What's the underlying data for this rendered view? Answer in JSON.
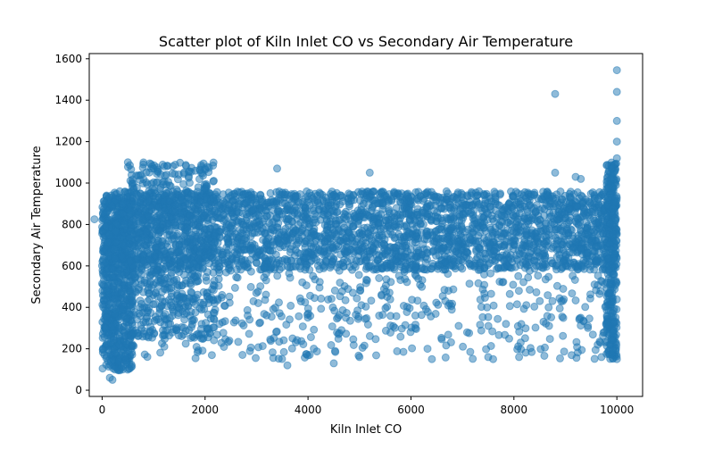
{
  "chart_data": {
    "type": "scatter",
    "title": "Scatter plot of Kiln Inlet CO vs Secondary Air Temperature",
    "xlabel": "Kiln Inlet CO",
    "ylabel": "Secondary Air Temperature",
    "xlim": [
      -250,
      10500
    ],
    "ylim": [
      -30,
      1625
    ],
    "xticks": [
      0,
      2000,
      4000,
      6000,
      8000,
      10000
    ],
    "yticks": [
      0,
      200,
      400,
      600,
      800,
      1000,
      1200,
      1400,
      1600
    ],
    "grid": false,
    "legend": "none",
    "marker_color": "#1f77b4",
    "marker_alpha": 0.5,
    "dense_regions": [
      {
        "x_range": [
          0,
          10000
        ],
        "y_range": [
          580,
          960
        ],
        "weight": 0.6
      },
      {
        "x_range": [
          0,
          600
        ],
        "y_range": [
          90,
          940
        ],
        "weight": 0.12
      },
      {
        "x_range": [
          500,
          2200
        ],
        "y_range": [
          250,
          1100
        ],
        "weight": 0.12
      },
      {
        "x_range": [
          9800,
          10000
        ],
        "y_range": [
          150,
          1100
        ],
        "weight": 0.06
      },
      {
        "x_range": [
          0,
          10000
        ],
        "y_range": [
          150,
          580
        ],
        "weight": 0.1
      }
    ],
    "points": [
      {
        "x": -150,
        "y": 825
      },
      {
        "x": 200,
        "y": 50
      },
      {
        "x": 150,
        "y": 60
      },
      {
        "x": 250,
        "y": 100
      },
      {
        "x": 400,
        "y": 100
      },
      {
        "x": 500,
        "y": 1100
      },
      {
        "x": 800,
        "y": 1090
      },
      {
        "x": 1000,
        "y": 1070
      },
      {
        "x": 2000,
        "y": 1070
      },
      {
        "x": 3400,
        "y": 1070
      },
      {
        "x": 5200,
        "y": 1050
      },
      {
        "x": 8800,
        "y": 1050
      },
      {
        "x": 9200,
        "y": 1030
      },
      {
        "x": 9300,
        "y": 1020
      },
      {
        "x": 3600,
        "y": 120
      },
      {
        "x": 4500,
        "y": 130
      },
      {
        "x": 5000,
        "y": 160
      },
      {
        "x": 7500,
        "y": 160
      },
      {
        "x": 8100,
        "y": 160
      },
      {
        "x": 8800,
        "y": 1430
      },
      {
        "x": 9900,
        "y": 1070
      },
      {
        "x": 10000,
        "y": 1120
      },
      {
        "x": 10000,
        "y": 1200
      },
      {
        "x": 10000,
        "y": 1300
      },
      {
        "x": 10000,
        "y": 1440
      },
      {
        "x": 10000,
        "y": 1545
      },
      {
        "x": 10000,
        "y": 150
      },
      {
        "x": 9700,
        "y": 160
      }
    ]
  }
}
